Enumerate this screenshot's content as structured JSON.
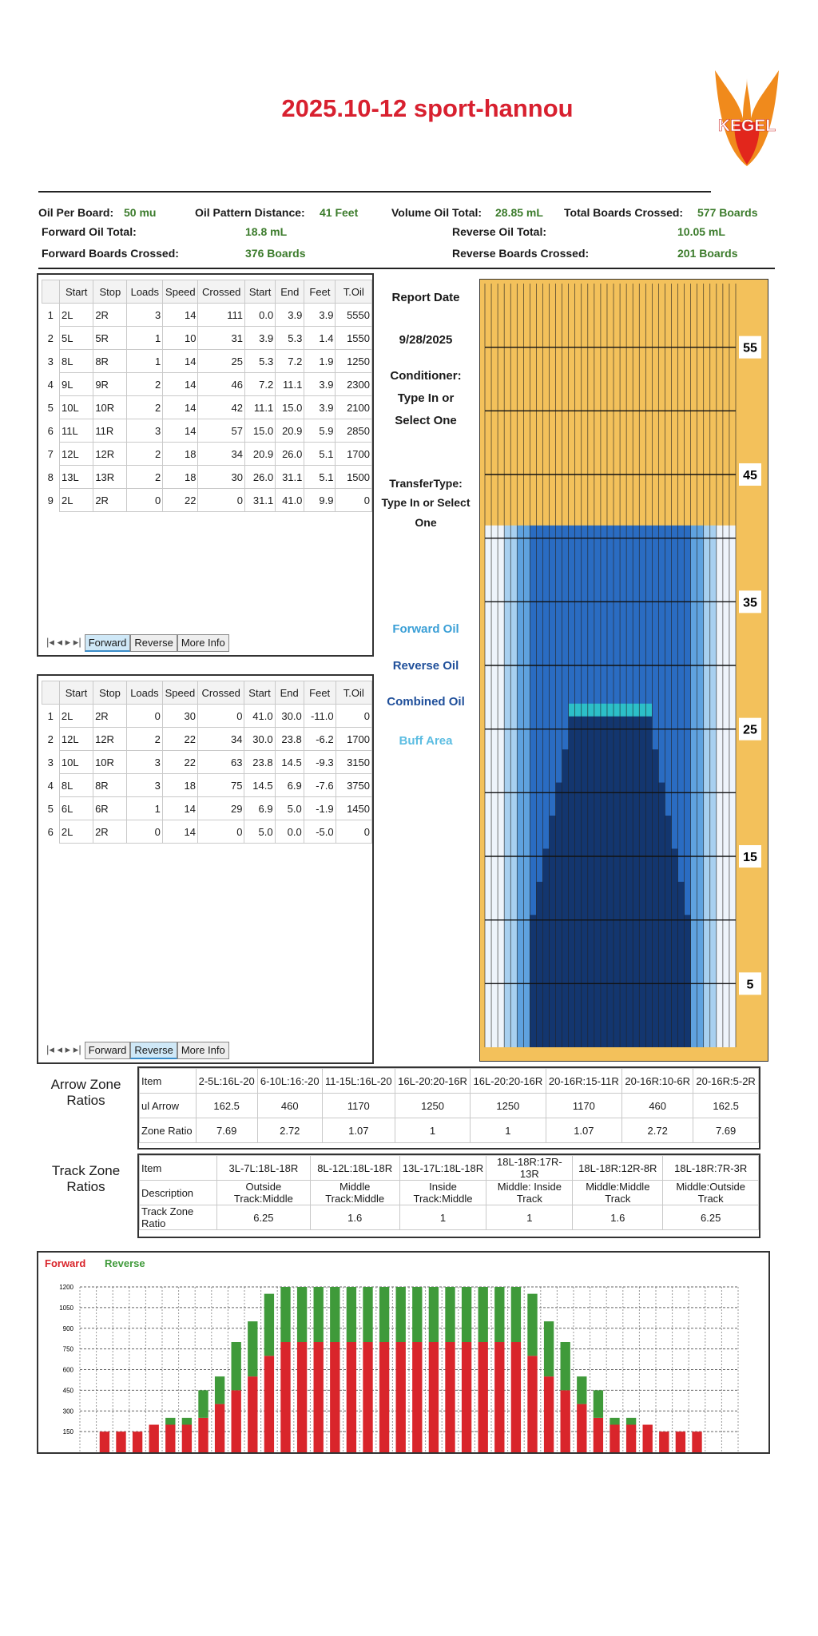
{
  "header": {
    "title": "2025.10-12 sport-hannou",
    "logo": "KEGEL"
  },
  "summary": [
    {
      "label": "Oil Per Board:",
      "value": "50 mu"
    },
    {
      "label": "Oil Pattern Distance:",
      "value": "41 Feet"
    },
    {
      "label": "Volume Oil Total:",
      "value": "28.85 mL"
    },
    {
      "label": "Total Boards Crossed:",
      "value": "577 Boards"
    },
    {
      "label": "Forward Oil Total:",
      "value": "18.8 mL"
    },
    {
      "label": "Reverse Oil Total:",
      "value": "10.05 mL"
    },
    {
      "label": "Forward Boards Crossed:",
      "value": "376 Boards"
    },
    {
      "label": "Reverse Boards Crossed:",
      "value": "201 Boards"
    }
  ],
  "forward_table": {
    "columns": [
      "Start",
      "Stop",
      "Loads",
      "Speed",
      "Crossed",
      "Start",
      "End",
      "Feet",
      "T.Oil"
    ],
    "rows": [
      [
        "1",
        "2L",
        "2R",
        "3",
        "14",
        "111",
        "0.0",
        "3.9",
        "3.9",
        "5550"
      ],
      [
        "2",
        "5L",
        "5R",
        "1",
        "10",
        "31",
        "3.9",
        "5.3",
        "1.4",
        "1550"
      ],
      [
        "3",
        "8L",
        "8R",
        "1",
        "14",
        "25",
        "5.3",
        "7.2",
        "1.9",
        "1250"
      ],
      [
        "4",
        "9L",
        "9R",
        "2",
        "14",
        "46",
        "7.2",
        "11.1",
        "3.9",
        "2300"
      ],
      [
        "5",
        "10L",
        "10R",
        "2",
        "14",
        "42",
        "11.1",
        "15.0",
        "3.9",
        "2100"
      ],
      [
        "6",
        "11L",
        "11R",
        "3",
        "14",
        "57",
        "15.0",
        "20.9",
        "5.9",
        "2850"
      ],
      [
        "7",
        "12L",
        "12R",
        "2",
        "18",
        "34",
        "20.9",
        "26.0",
        "5.1",
        "1700"
      ],
      [
        "8",
        "13L",
        "13R",
        "2",
        "18",
        "30",
        "26.0",
        "31.1",
        "5.1",
        "1500"
      ],
      [
        "9",
        "2L",
        "2R",
        "0",
        "22",
        "0",
        "31.1",
        "41.0",
        "9.9",
        "0"
      ]
    ],
    "tabs": [
      "Forward",
      "Reverse",
      "More Info"
    ],
    "active_tab": 0
  },
  "reverse_table": {
    "columns": [
      "Start",
      "Stop",
      "Loads",
      "Speed",
      "Crossed",
      "Start",
      "End",
      "Feet",
      "T.Oil"
    ],
    "rows": [
      [
        "1",
        "2L",
        "2R",
        "0",
        "30",
        "0",
        "41.0",
        "30.0",
        "-11.0",
        "0"
      ],
      [
        "2",
        "12L",
        "12R",
        "2",
        "22",
        "34",
        "30.0",
        "23.8",
        "-6.2",
        "1700"
      ],
      [
        "3",
        "10L",
        "10R",
        "3",
        "22",
        "63",
        "23.8",
        "14.5",
        "-9.3",
        "3150"
      ],
      [
        "4",
        "8L",
        "8R",
        "3",
        "18",
        "75",
        "14.5",
        "6.9",
        "-7.6",
        "3750"
      ],
      [
        "5",
        "6L",
        "6R",
        "1",
        "14",
        "29",
        "6.9",
        "5.0",
        "-1.9",
        "1450"
      ],
      [
        "6",
        "2L",
        "2R",
        "0",
        "14",
        "0",
        "5.0",
        "0.0",
        "-5.0",
        "0"
      ]
    ],
    "tabs": [
      "Forward",
      "Reverse",
      "More Info"
    ],
    "active_tab": 1
  },
  "side_info": {
    "report_date_label": "Report Date",
    "report_date": "9/28/2025",
    "conditioner": [
      "Conditioner:",
      "Type In or",
      "Select One"
    ],
    "transfer_type": [
      "TransferType:",
      "Type In or Select",
      "One"
    ],
    "legend": [
      {
        "text": "Forward Oil",
        "color": "#3a9fd6"
      },
      {
        "text": "Reverse Oil",
        "color": "#1f4f9a"
      },
      {
        "text": "Combined Oil",
        "color": "#1f4f9a"
      },
      {
        "text": "Buff Area",
        "color": "#5cbde2"
      }
    ]
  },
  "pattern_graph": {
    "ylim": [
      0,
      60
    ],
    "yticks": [
      55,
      45,
      35,
      25,
      15,
      5
    ]
  },
  "arrow_zones": {
    "label": "Arrow Zone Ratios",
    "header": [
      "Item",
      "2-5L:16L-20",
      "6-10L:16:-20",
      "11-15L:16L-20",
      "16L-20:20-16R",
      "16L-20:20-16R",
      "20-16R:15-11R",
      "20-16R:10-6R",
      "20-16R:5-2R"
    ],
    "rows": [
      [
        "ul Arrow",
        "162.5",
        "460",
        "1170",
        "1250",
        "1250",
        "1170",
        "460",
        "162.5"
      ],
      [
        "Zone Ratio",
        "7.69",
        "2.72",
        "1.07",
        "1",
        "1",
        "1.07",
        "2.72",
        "7.69"
      ]
    ]
  },
  "track_zones": {
    "label": "Track Zone Ratios",
    "header": [
      "Item",
      "3L-7L:18L-18R",
      "8L-12L:18L-18R",
      "13L-17L:18L-18R",
      "18L-18R:17R-13R",
      "18L-18R:12R-8R",
      "18L-18R:7R-3R"
    ],
    "rows": [
      [
        "Description",
        "Outside Track:Middle",
        "Middle Track:Middle",
        "Inside Track:Middle",
        "Middle: Inside Track",
        "Middle:Middle Track",
        "Middle:Outside Track"
      ],
      [
        "Track Zone Ratio",
        "6.25",
        "1.6",
        "1",
        "1",
        "1.6",
        "6.25"
      ]
    ]
  },
  "chart": {
    "type": "bar",
    "stacked": true,
    "grid": true,
    "ylim": [
      0,
      1200
    ],
    "yticks": [
      150,
      300,
      450,
      600,
      750,
      900,
      1050,
      1200
    ],
    "series": [
      {
        "name": "Forward",
        "color": "#d9252b",
        "values": [
          150,
          150,
          150,
          200,
          200,
          200,
          250,
          350,
          450,
          550,
          700,
          800,
          800,
          800,
          800,
          800,
          800,
          800,
          800,
          800,
          800,
          800,
          800,
          800,
          800,
          800,
          700,
          550,
          450,
          350,
          250,
          200,
          200,
          200,
          150,
          150,
          150
        ]
      },
      {
        "name": "Reverse",
        "color": "#3f9a3a",
        "values": [
          0,
          0,
          0,
          0,
          50,
          50,
          200,
          200,
          350,
          400,
          450,
          400,
          400,
          400,
          400,
          400,
          400,
          400,
          400,
          400,
          400,
          400,
          400,
          400,
          400,
          400,
          450,
          400,
          350,
          200,
          200,
          50,
          50,
          0,
          0,
          0,
          0
        ]
      }
    ]
  }
}
